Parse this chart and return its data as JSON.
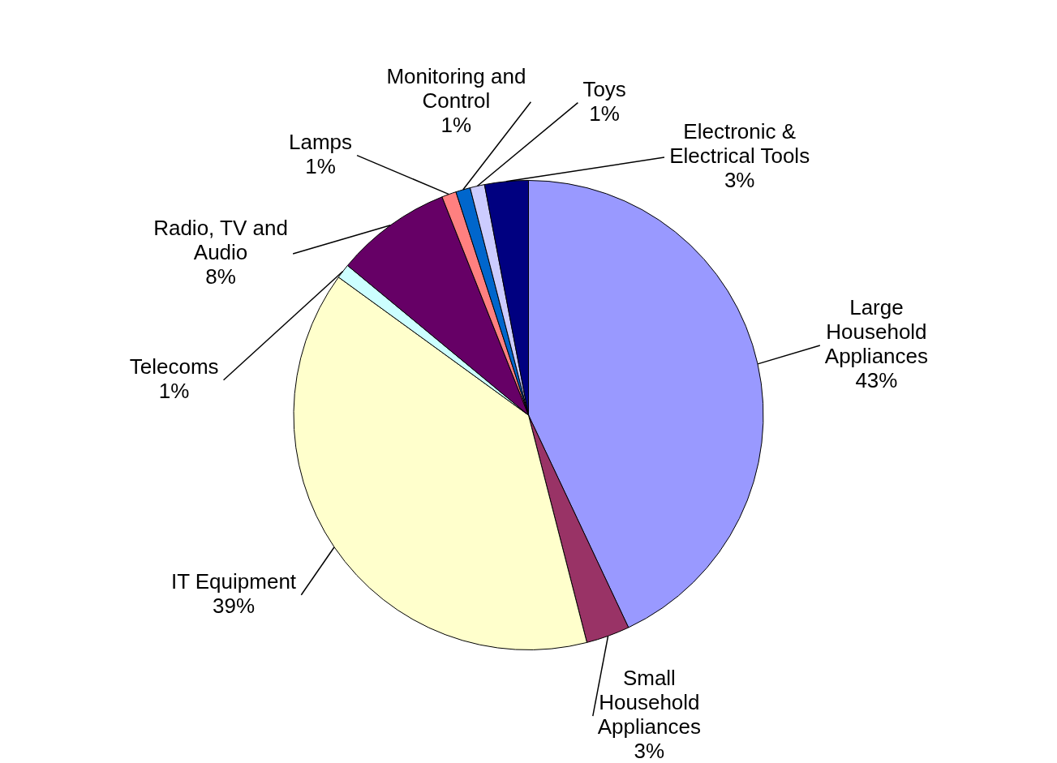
{
  "chart_data": {
    "type": "pie",
    "categories": [
      "Large Household Appliances",
      "Small Household Appliances",
      "IT Equipment",
      "Telecoms",
      "Radio, TV and Audio",
      "Lamps",
      "Monitoring and Control",
      "Toys",
      "Electronic & Electrical Tools"
    ],
    "values": [
      43,
      3,
      39,
      1,
      8,
      1,
      1,
      1,
      3
    ],
    "colors": [
      "#9999ff",
      "#993366",
      "#ffffcc",
      "#ccffff",
      "#660066",
      "#ff8080",
      "#0066cc",
      "#ccccff",
      "#000080"
    ],
    "value_labels": [
      "43%",
      "3%",
      "39%",
      "1%",
      "8%",
      "1%",
      "1%",
      "1%",
      "3%"
    ]
  }
}
